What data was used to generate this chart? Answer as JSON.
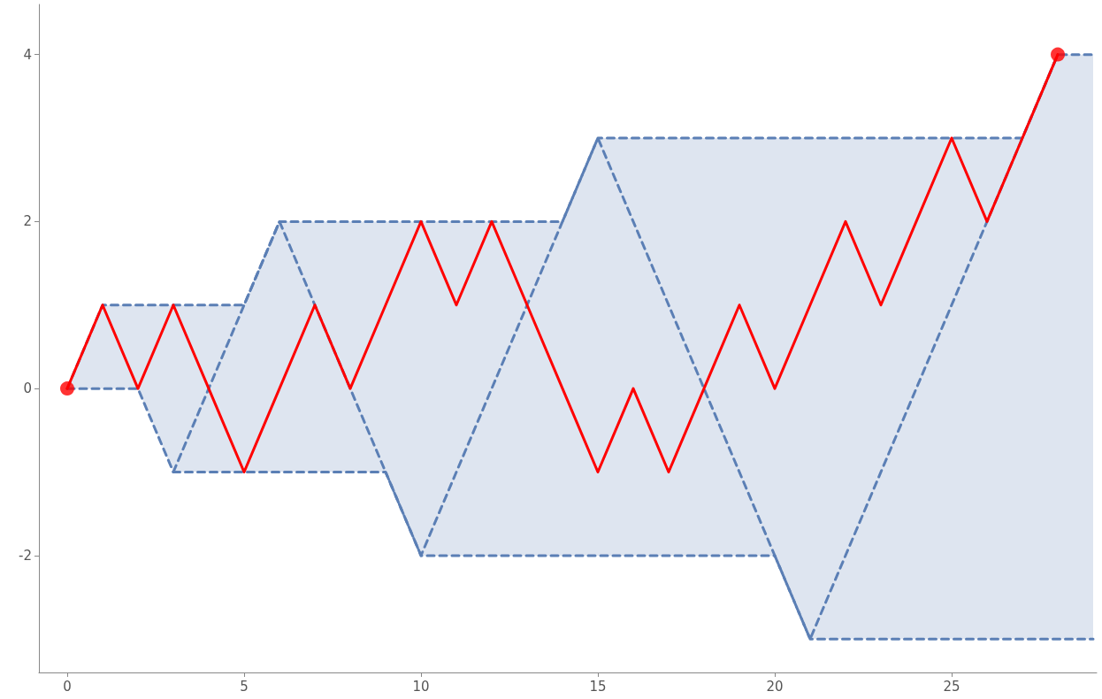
{
  "chart_data": {
    "type": "line",
    "xlim": [
      -0.8,
      29.1
    ],
    "ylim": [
      -3.4,
      4.6
    ],
    "xticks": [
      0,
      5,
      10,
      15,
      20,
      25
    ],
    "yticks": [
      -2,
      0,
      2,
      4
    ],
    "grid": false,
    "series": [
      {
        "color": "#5b7fb5",
        "line_style": "dashed",
        "marker": "none",
        "x": [
          0,
          1,
          2,
          3,
          4,
          5,
          6,
          7,
          8,
          9,
          10,
          11,
          12,
          13,
          14,
          15,
          16,
          17,
          18,
          19,
          20,
          21,
          22,
          23,
          24,
          25,
          26,
          27,
          28,
          29
        ],
        "values": [
          0,
          1,
          1,
          1,
          1,
          1,
          2,
          2,
          2,
          2,
          2,
          2,
          2,
          2,
          2,
          3,
          3,
          3,
          3,
          3,
          3,
          3,
          3,
          3,
          3,
          3,
          3,
          3,
          4,
          4
        ],
        "lower": [
          0,
          0,
          0,
          -1,
          -1,
          -1,
          -1,
          -1,
          -1,
          -1,
          -2,
          -2,
          -2,
          -2,
          -2,
          -2,
          -2,
          -2,
          -2,
          -2,
          -2,
          -3,
          -3,
          -3,
          -3,
          -3,
          -3,
          -3,
          -3,
          -3
        ],
        "upper": [
          0,
          1,
          1,
          1,
          1,
          1,
          2,
          2,
          2,
          2,
          2,
          2,
          2,
          2,
          2,
          3,
          3,
          3,
          3,
          3,
          3,
          3,
          3,
          3,
          3,
          3,
          3,
          3,
          4,
          4
        ]
      },
      {
        "color": "#5b7fb5",
        "line_style": "dashed",
        "marker": "none",
        "x": [
          0,
          1,
          2,
          3,
          4,
          5,
          6,
          7,
          8,
          9,
          10,
          11,
          12,
          13,
          14,
          15,
          16,
          17,
          18,
          19,
          20,
          21,
          22,
          23,
          24,
          25,
          26,
          27,
          28,
          29
        ],
        "values": [
          0,
          0,
          0,
          -1,
          -1,
          -1,
          -1,
          -1,
          -1,
          -1,
          -2,
          -2,
          -2,
          -2,
          -2,
          -2,
          -2,
          -2,
          -2,
          -2,
          -2,
          -3,
          -3,
          -3,
          -3,
          -3,
          -3,
          -3,
          -3,
          -3
        ]
      },
      {
        "color": "#5b7fb5",
        "line_style": "dashed",
        "marker": "none",
        "x": [
          3,
          6,
          10,
          15,
          21,
          28
        ],
        "values": [
          -1,
          2,
          -2,
          3,
          -3,
          4
        ]
      },
      {
        "color": "#ff0000",
        "line_style": "solid",
        "marker": "none",
        "x": [
          0,
          1,
          2,
          3,
          4,
          5,
          6,
          7,
          8,
          9,
          10,
          11,
          12,
          13,
          14,
          15,
          16,
          17,
          18,
          19,
          20,
          21,
          22,
          23,
          24,
          25,
          26,
          27,
          28
        ],
        "values": [
          0,
          1,
          0,
          1,
          0,
          -1,
          0,
          1,
          0,
          1,
          2,
          1,
          2,
          1,
          0,
          -1,
          0,
          -1,
          0,
          1,
          0,
          1,
          2,
          1,
          2,
          3,
          2,
          3,
          4
        ]
      },
      {
        "type": "scatter",
        "color": "#ff0000",
        "marker": "circle",
        "x": [
          0,
          28
        ],
        "values": [
          0,
          4
        ]
      }
    ]
  }
}
